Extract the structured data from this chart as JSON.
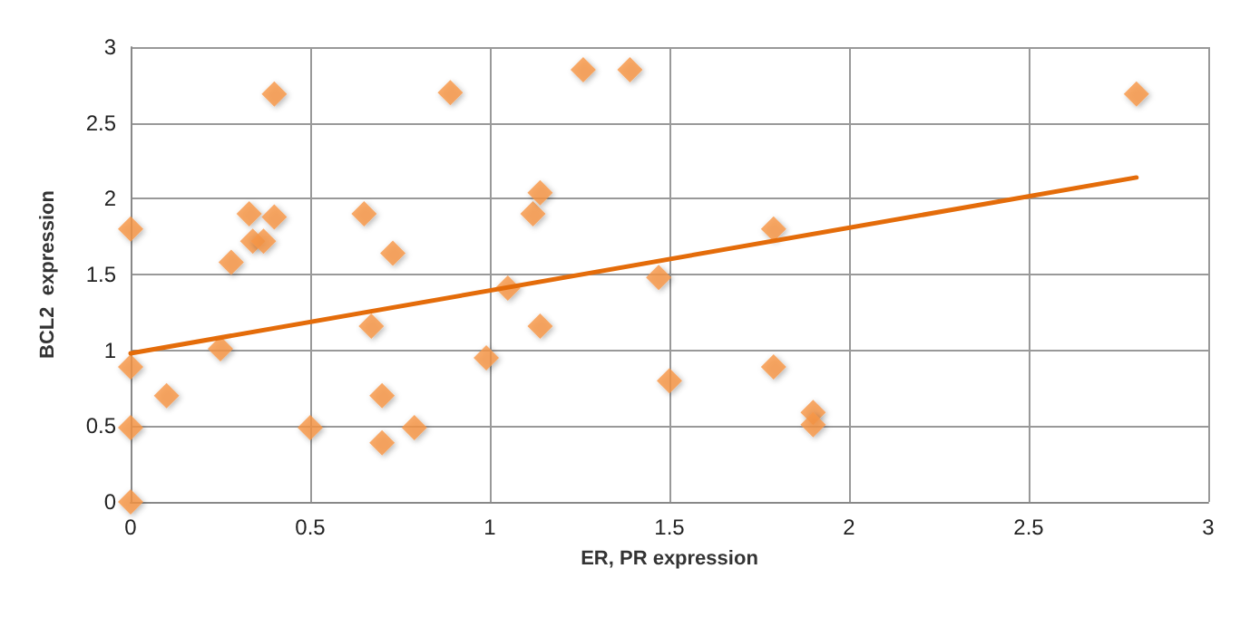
{
  "chart_data": {
    "type": "scatter",
    "xlabel": "ER, PR expression",
    "ylabel": "BCL2  expression",
    "xlim": [
      0,
      3
    ],
    "xticks": [
      0,
      0.5,
      1,
      1.5,
      2,
      2.5,
      3
    ],
    "ylim": [
      0,
      3
    ],
    "yticks": [
      0,
      0.5,
      1,
      1.5,
      2,
      2.5,
      3
    ],
    "grid": true,
    "marker": "diamond",
    "series": [
      {
        "color": "#f79646",
        "x": [
          0,
          0,
          0,
          0,
          0.1,
          0.25,
          0.28,
          0.33,
          0.4,
          0.4,
          0.34,
          0.37,
          0.5,
          0.65,
          0.67,
          0.7,
          0.7,
          0.73,
          0.79,
          0.89,
          0.99,
          1.05,
          1.12,
          1.14,
          1.14,
          1.26,
          1.39,
          1.47,
          1.5,
          1.79,
          1.79,
          1.9,
          1.9,
          2.8
        ],
        "values": [
          1.8,
          0.89,
          0.49,
          0,
          0.7,
          1.01,
          1.58,
          1.9,
          2.69,
          1.88,
          1.72,
          1.72,
          0.49,
          1.9,
          1.16,
          0.7,
          0.39,
          1.64,
          0.49,
          2.7,
          0.95,
          1.41,
          1.9,
          2.04,
          1.16,
          2.85,
          2.85,
          1.48,
          0.8,
          1.8,
          0.89,
          0.59,
          0.51,
          2.69
        ]
      },
      {
        "type": "line",
        "color": "#e46c0a",
        "marker": "none",
        "x": [
          0,
          2.8
        ],
        "values": [
          0.98,
          2.14
        ]
      }
    ]
  }
}
